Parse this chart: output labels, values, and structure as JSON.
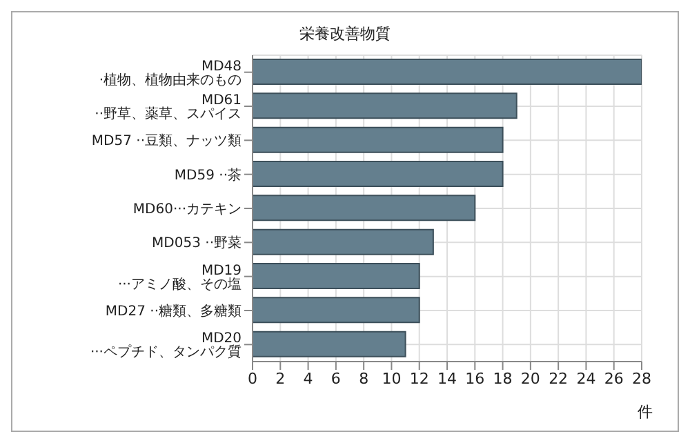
{
  "chart_data": {
    "type": "bar",
    "orientation": "horizontal",
    "title": "栄養改善物質",
    "xlabel": "件",
    "categories": [
      "MD48 ·植物、植物由来のもの",
      "MD61 ··野草、薬草、スパイス",
      "MD57 ··豆類、ナッツ類",
      "MD59 ··茶",
      "MD60···カテキン",
      "MD053 ··野菜",
      "MD19 ···アミノ酸、その塩",
      "MD27 ··糖類、多糖類",
      "MD20 ···ペプチド、タンパク質"
    ],
    "values": [
      28,
      19,
      18,
      18,
      16,
      13,
      12,
      12,
      11
    ],
    "color": "#647f8e",
    "xlim": [
      0,
      28
    ],
    "xticks": [
      0,
      2,
      4,
      6,
      8,
      10,
      12,
      14,
      16,
      18,
      20,
      22,
      24,
      26,
      28
    ],
    "grid": true
  }
}
